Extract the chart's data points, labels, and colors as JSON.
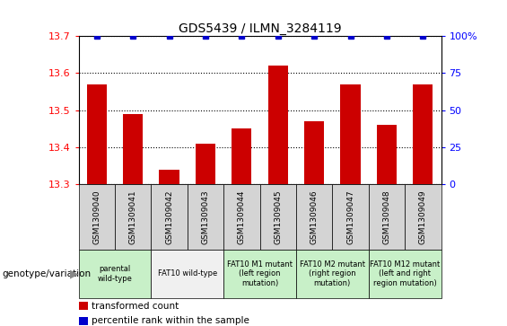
{
  "title": "GDS5439 / ILMN_3284119",
  "samples": [
    "GSM1309040",
    "GSM1309041",
    "GSM1309042",
    "GSM1309043",
    "GSM1309044",
    "GSM1309045",
    "GSM1309046",
    "GSM1309047",
    "GSM1309048",
    "GSM1309049"
  ],
  "bar_values": [
    13.57,
    13.49,
    13.34,
    13.41,
    13.45,
    13.62,
    13.47,
    13.57,
    13.46,
    13.57
  ],
  "percentile_values": [
    100,
    100,
    100,
    100,
    100,
    100,
    100,
    100,
    100,
    100
  ],
  "ylim": [
    13.3,
    13.7
  ],
  "yticks": [
    13.3,
    13.4,
    13.5,
    13.6,
    13.7
  ],
  "right_yticks": [
    0,
    25,
    50,
    75,
    100
  ],
  "right_ylim": [
    0,
    100
  ],
  "bar_color": "#cc0000",
  "percentile_color": "#0000cc",
  "grid_color": "#000000",
  "background_color": "#ffffff",
  "sample_cell_color": "#d4d4d4",
  "genotype_groups": [
    {
      "label": "parental\nwild-type",
      "span": [
        0,
        2
      ],
      "color": "#c8f0c8"
    },
    {
      "label": "FAT10 wild-type",
      "span": [
        2,
        4
      ],
      "color": "#f0f0f0"
    },
    {
      "label": "FAT10 M1 mutant\n(left region\nmutation)",
      "span": [
        4,
        6
      ],
      "color": "#c8f0c8"
    },
    {
      "label": "FAT10 M2 mutant\n(right region\nmutation)",
      "span": [
        6,
        8
      ],
      "color": "#c8f0c8"
    },
    {
      "label": "FAT10 M12 mutant\n(left and right\nregion mutation)",
      "span": [
        8,
        10
      ],
      "color": "#c8f0c8"
    }
  ],
  "legend_items": [
    {
      "color": "#cc0000",
      "label": "transformed count"
    },
    {
      "color": "#0000cc",
      "label": "percentile rank within the sample"
    }
  ],
  "genotype_label": "genotype/variation"
}
